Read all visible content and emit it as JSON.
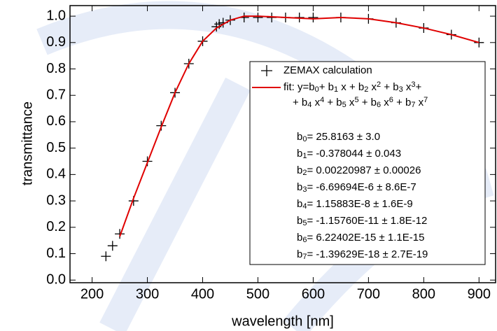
{
  "chart_data": {
    "type": "scatter",
    "xlabel": "wavelength [nm]",
    "ylabel": "transmittance",
    "xlim": [
      160,
      930
    ],
    "ylim": [
      -0.01,
      1.04
    ],
    "xticks": [
      200,
      300,
      400,
      500,
      600,
      700,
      800,
      900
    ],
    "yticks": [
      {
        "value": 0,
        "label": "0.0"
      },
      0.1,
      0.2,
      0.3,
      0.4,
      0.5,
      0.6,
      0.7,
      0.8,
      0.9,
      {
        "value": 1,
        "label": "1.0"
      }
    ],
    "series": [
      {
        "name": "ZEMAX calculation",
        "type": "scatter",
        "color": "#000000",
        "x": [
          225,
          237,
          250,
          275,
          300,
          325,
          350,
          375,
          400,
          425,
          430,
          437,
          450,
          475,
          500,
          525,
          550,
          575,
          600,
          650,
          700,
          750,
          800,
          850,
          900
        ],
        "values": [
          0.09,
          0.13,
          0.175,
          0.3,
          0.45,
          0.585,
          0.71,
          0.82,
          0.905,
          0.96,
          0.97,
          0.975,
          0.985,
          0.995,
          0.995,
          0.995,
          0.995,
          0.995,
          0.995,
          0.995,
          0.99,
          0.975,
          0.955,
          0.93,
          0.9
        ]
      },
      {
        "name": [
          [
            {
              "t": "fit: y=b"
            },
            {
              "sub": "0"
            },
            {
              "t": "+ b"
            },
            {
              "sub": "1"
            },
            {
              "t": " x + b"
            },
            {
              "sub": "2"
            },
            {
              "t": " x"
            },
            {
              "sup": "2"
            },
            {
              "t": " + b"
            },
            {
              "sub": "3"
            },
            {
              "t": " x"
            },
            {
              "sup": "3"
            },
            {
              "t": "+"
            }
          ],
          [
            {
              "t": "+ b"
            },
            {
              "sub": "4"
            },
            {
              "t": " x"
            },
            {
              "sup": "4"
            },
            {
              "t": " + b"
            },
            {
              "sub": "5"
            },
            {
              "t": " x"
            },
            {
              "sup": "5"
            },
            {
              "t": " + b"
            },
            {
              "sub": "6"
            },
            {
              "t": " x"
            },
            {
              "sup": "6"
            },
            {
              "t": " + b"
            },
            {
              "sub": "7"
            },
            {
              "t": " x"
            },
            {
              "sup": "7"
            }
          ]
        ],
        "type": "line",
        "color": "#e00000",
        "x": [
          250,
          275,
          300,
          325,
          350,
          375,
          400,
          425,
          450,
          475,
          500,
          550,
          600,
          650,
          700,
          750,
          800,
          850,
          900
        ],
        "values": [
          0.165,
          0.31,
          0.445,
          0.58,
          0.71,
          0.82,
          0.905,
          0.955,
          0.985,
          1.0,
          1.0,
          0.995,
          0.99,
          0.995,
          0.99,
          0.975,
          0.955,
          0.93,
          0.9
        ]
      }
    ],
    "annotations": [
      [
        {
          "t": "b"
        },
        {
          "sub": "0"
        },
        {
          "t": "= 25.8163 ± 3.0"
        }
      ],
      [
        {
          "t": "b"
        },
        {
          "sub": "1"
        },
        {
          "t": "= -0.378044 ± 0.043"
        }
      ],
      [
        {
          "t": "b"
        },
        {
          "sub": "2"
        },
        {
          "t": "= 0.00220987 ± 0.00026"
        }
      ],
      [
        {
          "t": "b"
        },
        {
          "sub": "3"
        },
        {
          "t": "= -6.69694E-6 ± 8.6E-7"
        }
      ],
      [
        {
          "t": "b"
        },
        {
          "sub": "4"
        },
        {
          "t": "= 1.15883E-8 ± 1.6E-9"
        }
      ],
      [
        {
          "t": "b"
        },
        {
          "sub": "5"
        },
        {
          "t": "= -1.15760E-11 ± 1.8E-12"
        }
      ],
      [
        {
          "t": "b"
        },
        {
          "sub": "6"
        },
        {
          "t": "= 6.22402E-15 ± 1.1E-15"
        }
      ],
      [
        {
          "t": "b"
        },
        {
          "sub": "7"
        },
        {
          "t": "= -1.39629E-18 ± 2.7E-19"
        }
      ]
    ]
  }
}
